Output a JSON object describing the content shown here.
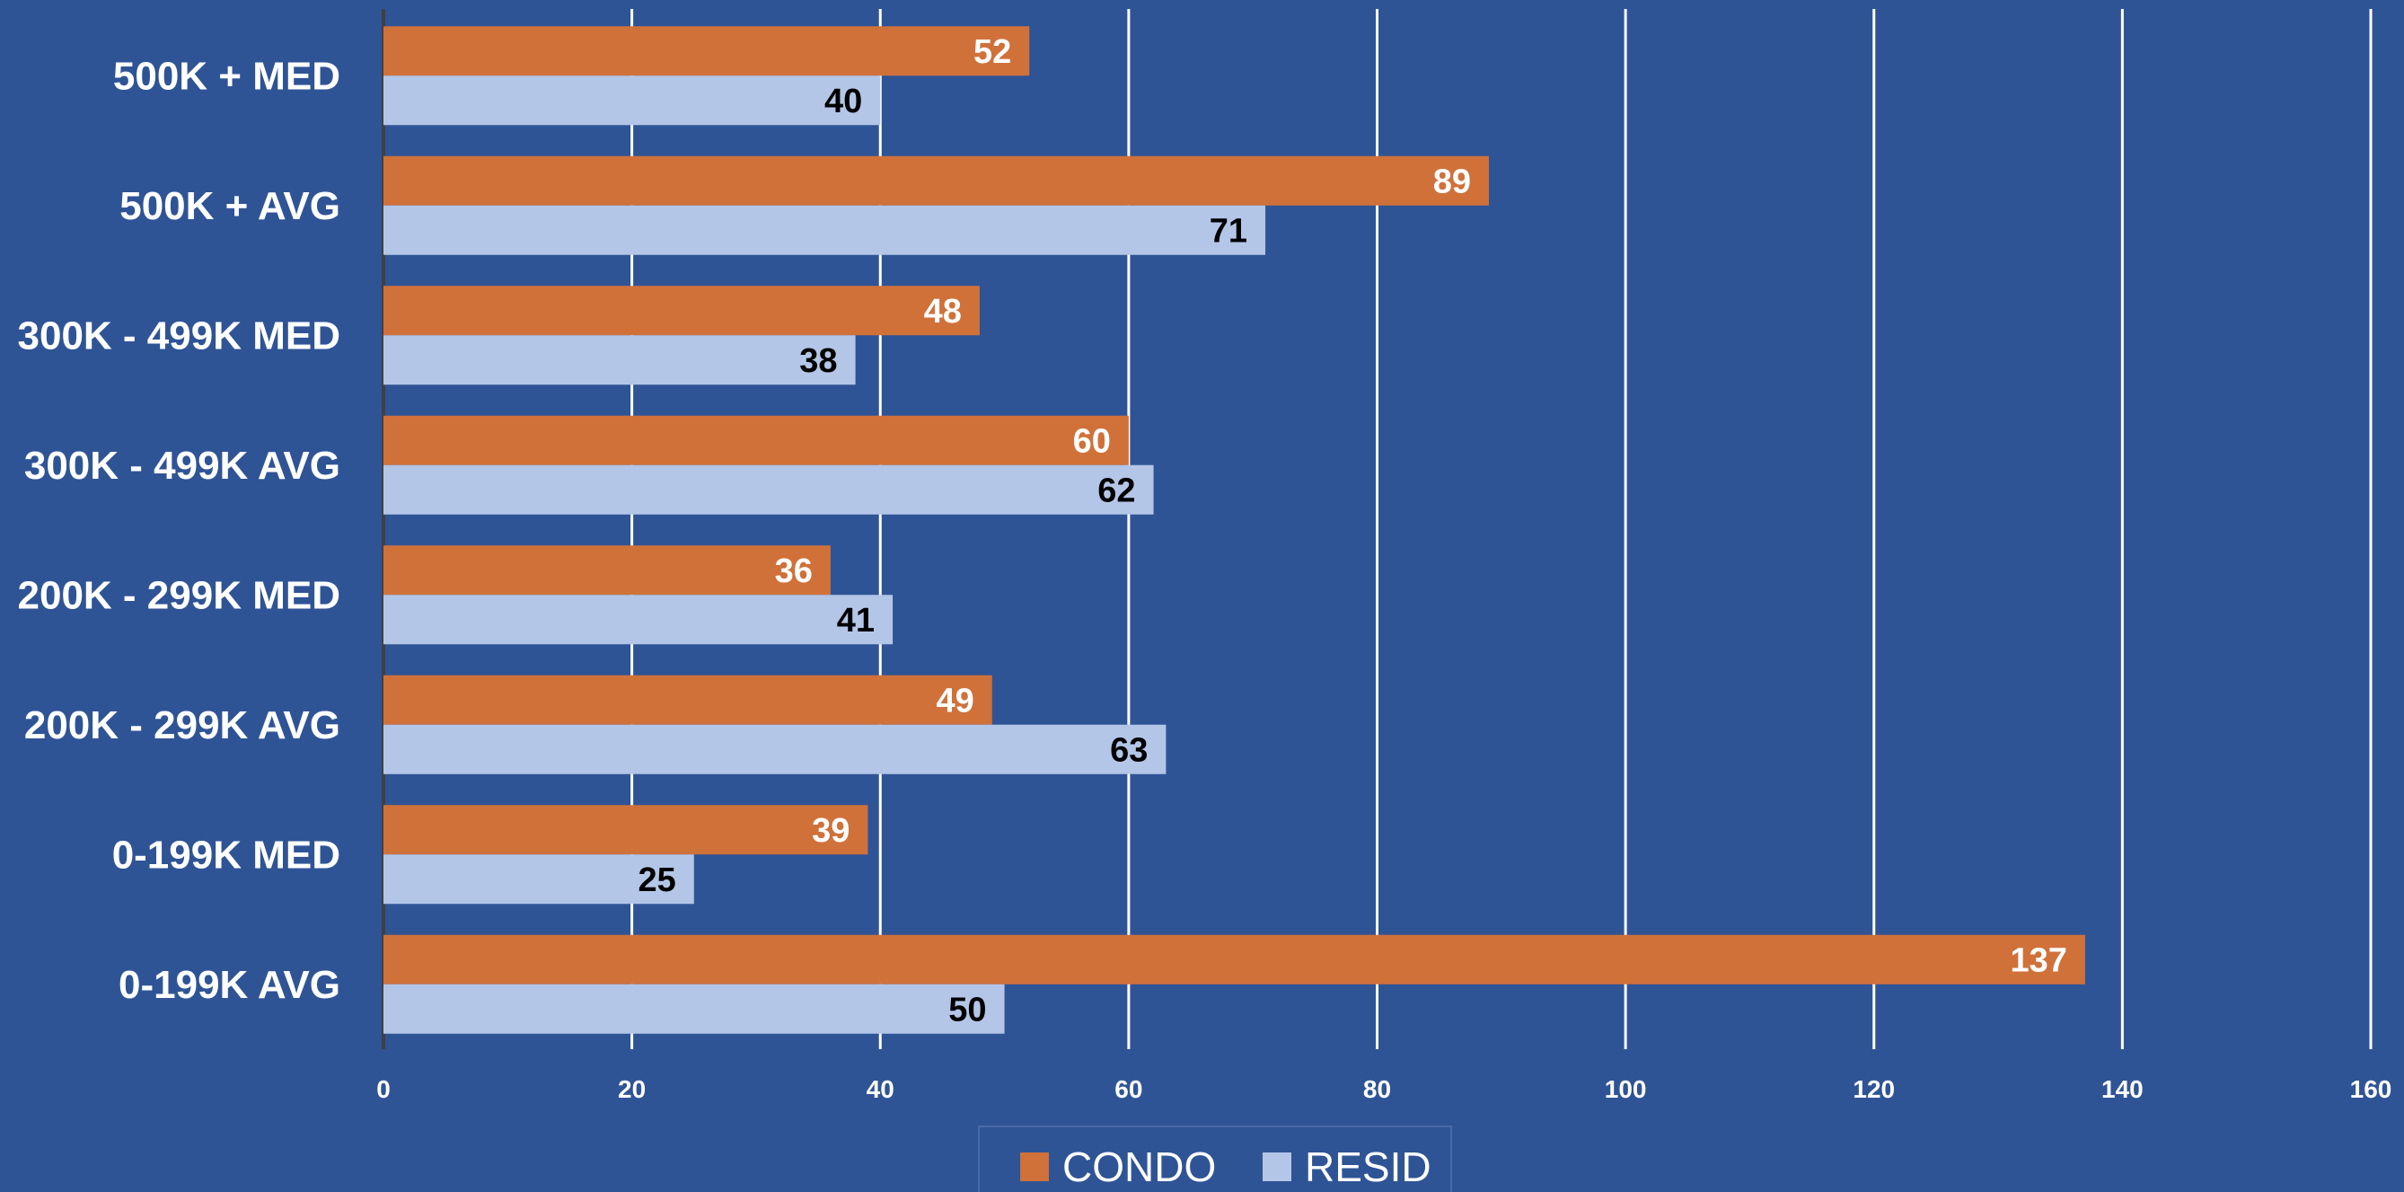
{
  "chart_data": {
    "type": "bar",
    "orientation": "horizontal",
    "title": "",
    "xlabel": "",
    "ylabel": "",
    "xlim": [
      0,
      160
    ],
    "x_ticks": [
      0,
      20,
      40,
      60,
      80,
      100,
      120,
      140,
      160
    ],
    "grid": "vertical",
    "legend_position": "bottom",
    "categories": [
      "500K + MED",
      "500K + AVG",
      "300K - 499K MED",
      "300K - 499K AVG",
      "200K - 299K MED",
      "200K - 299K AVG",
      "0-199K MED",
      "0-199K AVG"
    ],
    "series": [
      {
        "name": "CONDO",
        "color": "#D0713A",
        "values": [
          52,
          89,
          48,
          60,
          36,
          49,
          39,
          137
        ]
      },
      {
        "name": "RESID",
        "color": "#B4C6E7",
        "values": [
          40,
          71,
          38,
          62,
          41,
          63,
          25,
          50
        ]
      }
    ],
    "background_color": "#2F5496",
    "gridline_color": "#FFFFFF"
  }
}
